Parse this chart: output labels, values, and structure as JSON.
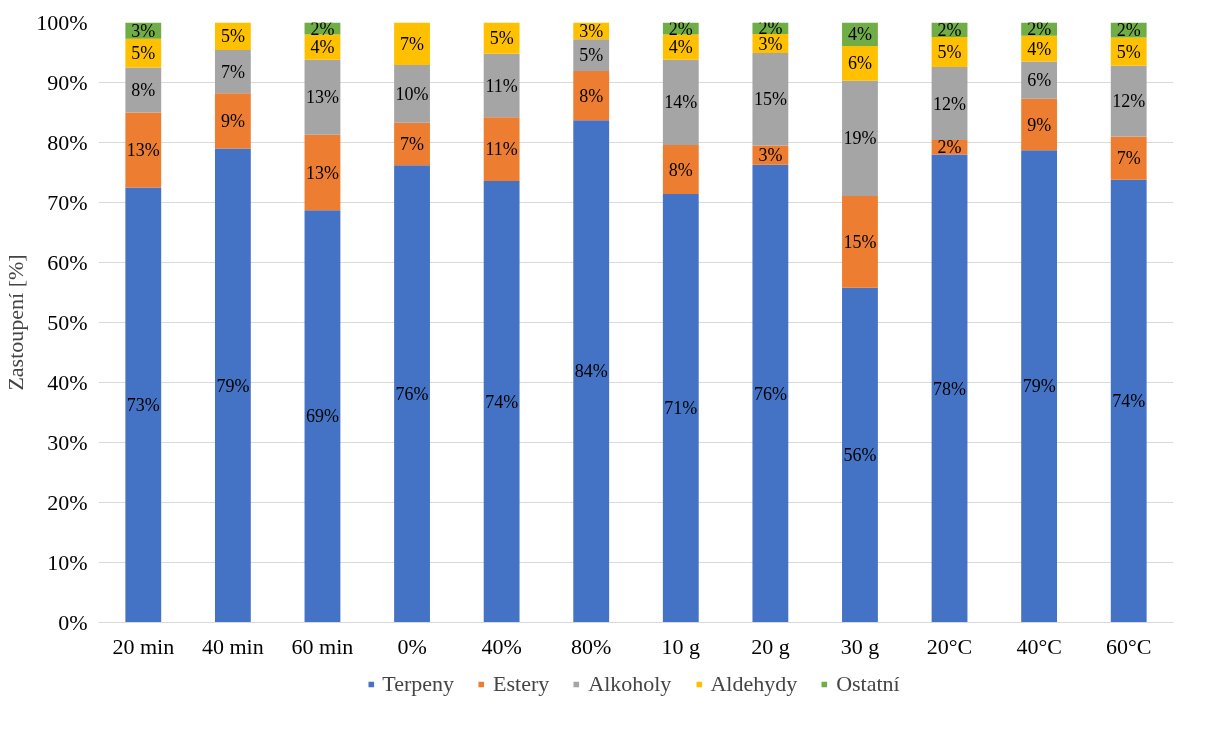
{
  "chart_data": {
    "type": "bar",
    "stacked": true,
    "ylabel": "Zastoupení [%]",
    "categories": [
      "20 min",
      "40 min",
      "60 min",
      "0%",
      "40%",
      "80%",
      "10 g",
      "20 g",
      "30 g",
      "20°C",
      "40°C",
      "60°C"
    ],
    "series": [
      {
        "name": "Terpeny",
        "color": "#4472c4",
        "values": [
          72.5,
          79,
          68.7,
          76.2,
          73.6,
          83.7,
          71.4,
          76.3,
          55.8,
          78,
          78.7,
          73.8
        ],
        "value_labels": [
          "73%",
          "79%",
          "69%",
          "76%",
          "74%",
          "84%",
          "71%",
          "76%",
          "56%",
          "78%",
          "79%",
          "74%"
        ]
      },
      {
        "name": "Estery",
        "color": "#ed7d31",
        "values": [
          12.5,
          9.2,
          12.6,
          7.1,
          10.6,
          8.2,
          8.2,
          3.2,
          15.3,
          2.4,
          8.6,
          7.2
        ],
        "value_labels": [
          "13%",
          "9%",
          "13%",
          "7%",
          "11%",
          "8%",
          "8%",
          "3%",
          "15%",
          "2%",
          "9%",
          "7%"
        ]
      },
      {
        "name": "Alkoholy",
        "color": "#a5a5a5",
        "values": [
          7.5,
          7.2,
          12.5,
          9.6,
          10.6,
          5.3,
          14.2,
          15.4,
          19.2,
          12.2,
          6.2,
          11.8
        ],
        "value_labels": [
          "8%",
          "7%",
          "13%",
          "10%",
          "11%",
          "5%",
          "14%",
          "15%",
          "19%",
          "12%",
          "6%",
          "12%"
        ]
      },
      {
        "name": "Aldehydy",
        "color": "#ffc000",
        "values": [
          4.8,
          4.6,
          4.2,
          7.1,
          5.2,
          2.8,
          4.2,
          3.2,
          5.8,
          5,
          4.3,
          4.7
        ],
        "value_labels": [
          "5%",
          "5%",
          "4%",
          "7%",
          "5%",
          "3%",
          "4%",
          "3%",
          "6%",
          "5%",
          "4%",
          "5%"
        ]
      },
      {
        "name": "Ostatní",
        "color": "#70ad47",
        "values": [
          2.7,
          null,
          2,
          null,
          null,
          null,
          2,
          1.9,
          3.9,
          2.4,
          2.2,
          2.5
        ],
        "value_labels": [
          "3%",
          null,
          "2%",
          null,
          null,
          null,
          "2%",
          "2%",
          "4%",
          "2%",
          "2%",
          "2%"
        ]
      }
    ],
    "ylim": [
      0,
      100
    ],
    "yticks": [
      {
        "value": 0,
        "label": "0%"
      },
      {
        "value": 10,
        "label": "10%"
      },
      {
        "value": 20,
        "label": "20%"
      },
      {
        "value": 30,
        "label": "30%"
      },
      {
        "value": 40,
        "label": "40%"
      },
      {
        "value": 50,
        "label": "50%"
      },
      {
        "value": 60,
        "label": "60%"
      },
      {
        "value": 70,
        "label": "70%"
      },
      {
        "value": 80,
        "label": "80%"
      },
      {
        "value": 90,
        "label": "90%"
      },
      {
        "value": 100,
        "label": "100%"
      }
    ],
    "grid": "y",
    "legend": "bottom"
  }
}
